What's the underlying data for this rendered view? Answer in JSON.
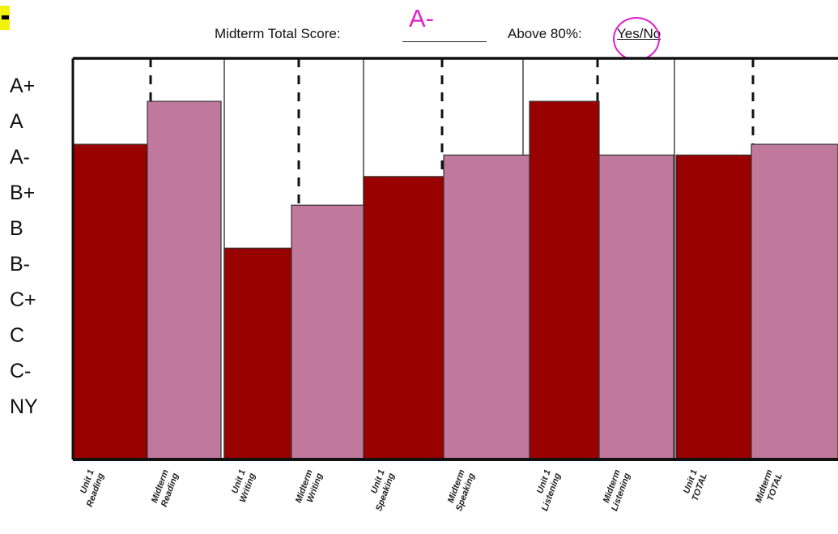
{
  "header": {
    "score_label": "Midterm Total Score:",
    "score_value": "A-",
    "above_label": "Above 80%:",
    "yes_no": "Yes/No"
  },
  "grade_labels": [
    "A+",
    "A",
    "A-",
    "B+",
    "B",
    "B-",
    "C+",
    "C",
    "C-",
    "NY"
  ],
  "colors": {
    "unit": "#990000",
    "midterm": "#c0799c",
    "highlight": "#e020c8",
    "corner": "#f2f20a"
  },
  "chart_data": {
    "type": "bar",
    "title": "",
    "categories": [
      [
        "Unit 1",
        "Reading"
      ],
      [
        "Midterm",
        "Reading"
      ],
      [
        "Unit 1",
        "Writing"
      ],
      [
        "Midterm",
        "Writing"
      ],
      [
        "Unit 1",
        "Speaking"
      ],
      [
        "Midterm",
        "Speaking"
      ],
      [
        "Unit 1",
        "Listening"
      ],
      [
        "Midterm",
        "Listening"
      ],
      [
        "Unit 1",
        "TOTAL"
      ],
      [
        "Midterm",
        "TOTAL"
      ]
    ],
    "values": [
      8.8,
      10.0,
      5.9,
      7.1,
      7.9,
      8.5,
      10.0,
      8.5,
      8.5,
      8.8
    ],
    "series_colors": [
      "unit",
      "midterm",
      "unit",
      "midterm",
      "unit",
      "midterm",
      "unit",
      "midterm",
      "unit",
      "midterm"
    ],
    "ylim": [
      0,
      11.2
    ],
    "grid": false
  }
}
